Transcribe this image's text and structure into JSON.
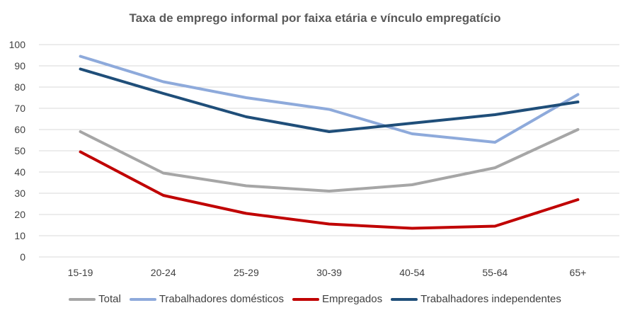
{
  "chart_data": {
    "type": "line",
    "title": "Taxa de emprego informal por faixa etária e vínculo empregatício",
    "xlabel": "",
    "ylabel": "",
    "categories": [
      "15-19",
      "20-24",
      "25-29",
      "30-39",
      "40-54",
      "55-64",
      "65+"
    ],
    "ylim": [
      0,
      100
    ],
    "yticks": [
      0,
      10,
      20,
      30,
      40,
      50,
      60,
      70,
      80,
      90,
      100
    ],
    "grid": true,
    "legend_position": "bottom",
    "series": [
      {
        "name": "Total",
        "color": "#a6a6a6",
        "values": [
          59,
          39.5,
          33.5,
          31,
          34,
          42,
          60
        ]
      },
      {
        "name": "Trabalhadores domésticos",
        "color": "#8eaadb",
        "values": [
          94.5,
          82.5,
          75,
          69.5,
          58,
          54,
          76.5
        ]
      },
      {
        "name": "Empregados",
        "color": "#c00000",
        "values": [
          49.5,
          29,
          20.5,
          15.5,
          13.5,
          14.5,
          27
        ]
      },
      {
        "name": "Trabalhadores independentes",
        "color": "#1f4e79",
        "values": [
          88.5,
          77,
          66,
          59,
          63,
          67,
          73
        ]
      }
    ]
  }
}
